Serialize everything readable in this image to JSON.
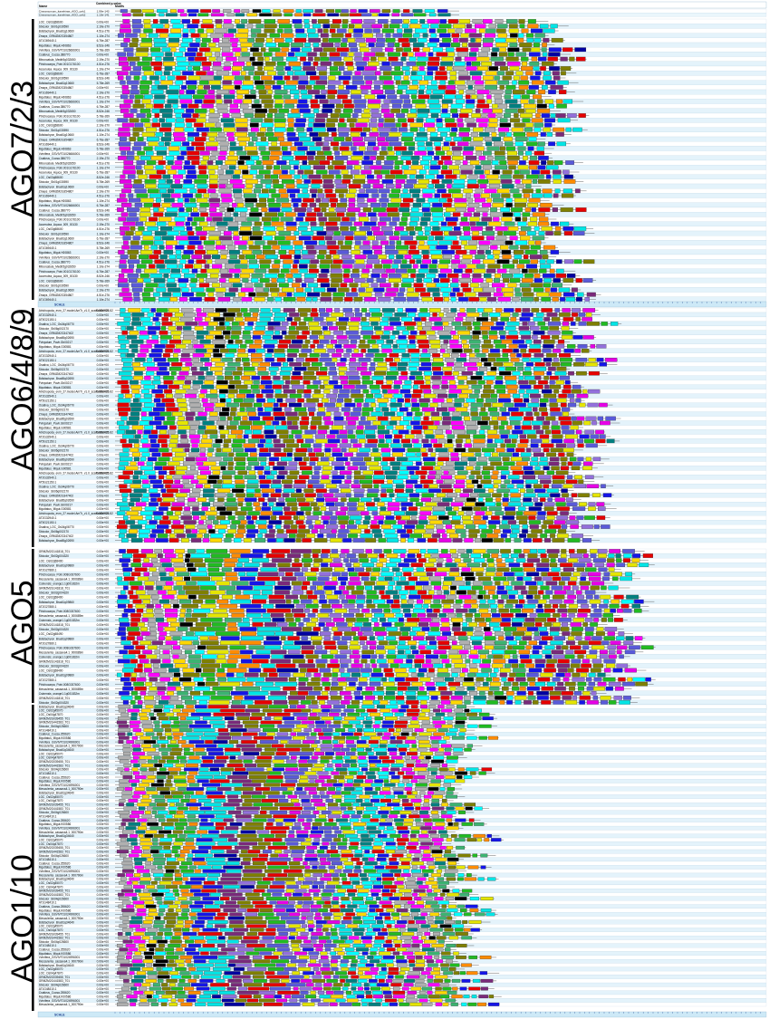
{
  "header": {
    "name_label": "Name",
    "combined_label": "Combined p-value",
    "motifs_label": "Motifs"
  },
  "scale_label": "SCALE",
  "top_rows": [
    {
      "name": "Cinnamomum_kanehirae_AGO_unk1",
      "p": "1.99e-143"
    },
    {
      "name": "Cinnamomum_kanehirae_AGO_unk2",
      "p": "1.10e-141"
    }
  ],
  "groups": [
    {
      "label": "AGO7/2/3",
      "rows": 60,
      "sample_names": [
        "LOC_Os03g58600",
        "Sbicolor_Sb01g030590",
        "Bdistachyon_Bradi1g10660",
        "Zmays_GRMZM2G354867",
        "AT1G69440.1",
        "Mguttatus_Migut.H00863",
        "Vvinifera_GSVIVT01026666001",
        "Csativus_Cucsa.386770",
        "Mtruncatula_Medtr5g032650",
        "Ptrichocarpa_Potri.001G176100",
        "Acoerulea_Aquca_009_00130"
      ],
      "sample_p": [
        "0.00e+00",
        "2.19e-270",
        "4.51e-276",
        "1.10e-274",
        "6.76e-287",
        "8.52e-246",
        "5.78e-269"
      ]
    },
    {
      "label": "AGO6/4/8/9",
      "rows": 52,
      "sample_names": [
        "Atrichopoda_evm_27.model.AmTr_v1.0_scaffold00025.82",
        "AT2G32940.1",
        "AT5G21150.1",
        "Osativa_LOC_Os04g06770",
        "Sbicolor_Sb06g002170",
        "Zmays_GRMZM2G347402",
        "Bdistachyon_Bradi5g02690",
        "Pvirgatum_Pavir.Gb00217",
        "Mguttatus_Migut.G00581"
      ],
      "sample_p": [
        "0.00e+00",
        "0.00e+00",
        "0.00e+00",
        "0.00e+00",
        "0.00e+00",
        "0.00e+00"
      ]
    },
    {
      "label": "AGO5",
      "rows": 34,
      "sample_names": [
        "GRMZM2G141818_T01",
        "Sbicolor_Sb02g004320",
        "LOC_Os02g58490",
        "Bdistachyon_Bradi1g09860",
        "AT2G27880.1",
        "Ptrichocarpa_Potri.008G037600",
        "Mesculenta_cassava4.1_000689m",
        "Csinensis_orange1.1g001832m"
      ],
      "sample_p": [
        "0.00e+00",
        "0.00e+00",
        "0.00e+00",
        "0.00e+00",
        "0.00e+00"
      ]
    },
    {
      "label": "AGO1/10",
      "rows": 77,
      "sample_names": [
        "Bdistachyon_Bradi1g34640",
        "LOC_Os02g45070",
        "LOC_Os04g47870",
        "GRMZM2G039455_T01",
        "GRMZM2G441583_T01",
        "Sbicolor_Sb04g026600",
        "AT1G48410.1",
        "Csativus_Cucsa.255620",
        "Mguttatus_Migut.K00586",
        "Vvinifera_GSVIVT01024996001",
        "Mesculenta_cassava4.1_000790m"
      ],
      "sample_p": [
        "0.00e+00",
        "0.00e+00",
        "0.00e+00",
        "0.00e+00",
        "0.00e+00",
        "0.00e+00"
      ]
    }
  ],
  "motif_colors": [
    "#1515e8",
    "#00e5e5",
    "#e60000",
    "#21bb21",
    "#e5e500",
    "#e600e6",
    "#5a5ad9",
    "#7f7f00",
    "#00ffff",
    "#ff00ff",
    "#008080",
    "#ffd700",
    "#b0b0b0",
    "#7a2a7a",
    "#0000a0",
    "#ff8c00",
    "#3cb371",
    "#000000",
    "#808000",
    "#9370db"
  ],
  "panel_color": "#d6effa"
}
